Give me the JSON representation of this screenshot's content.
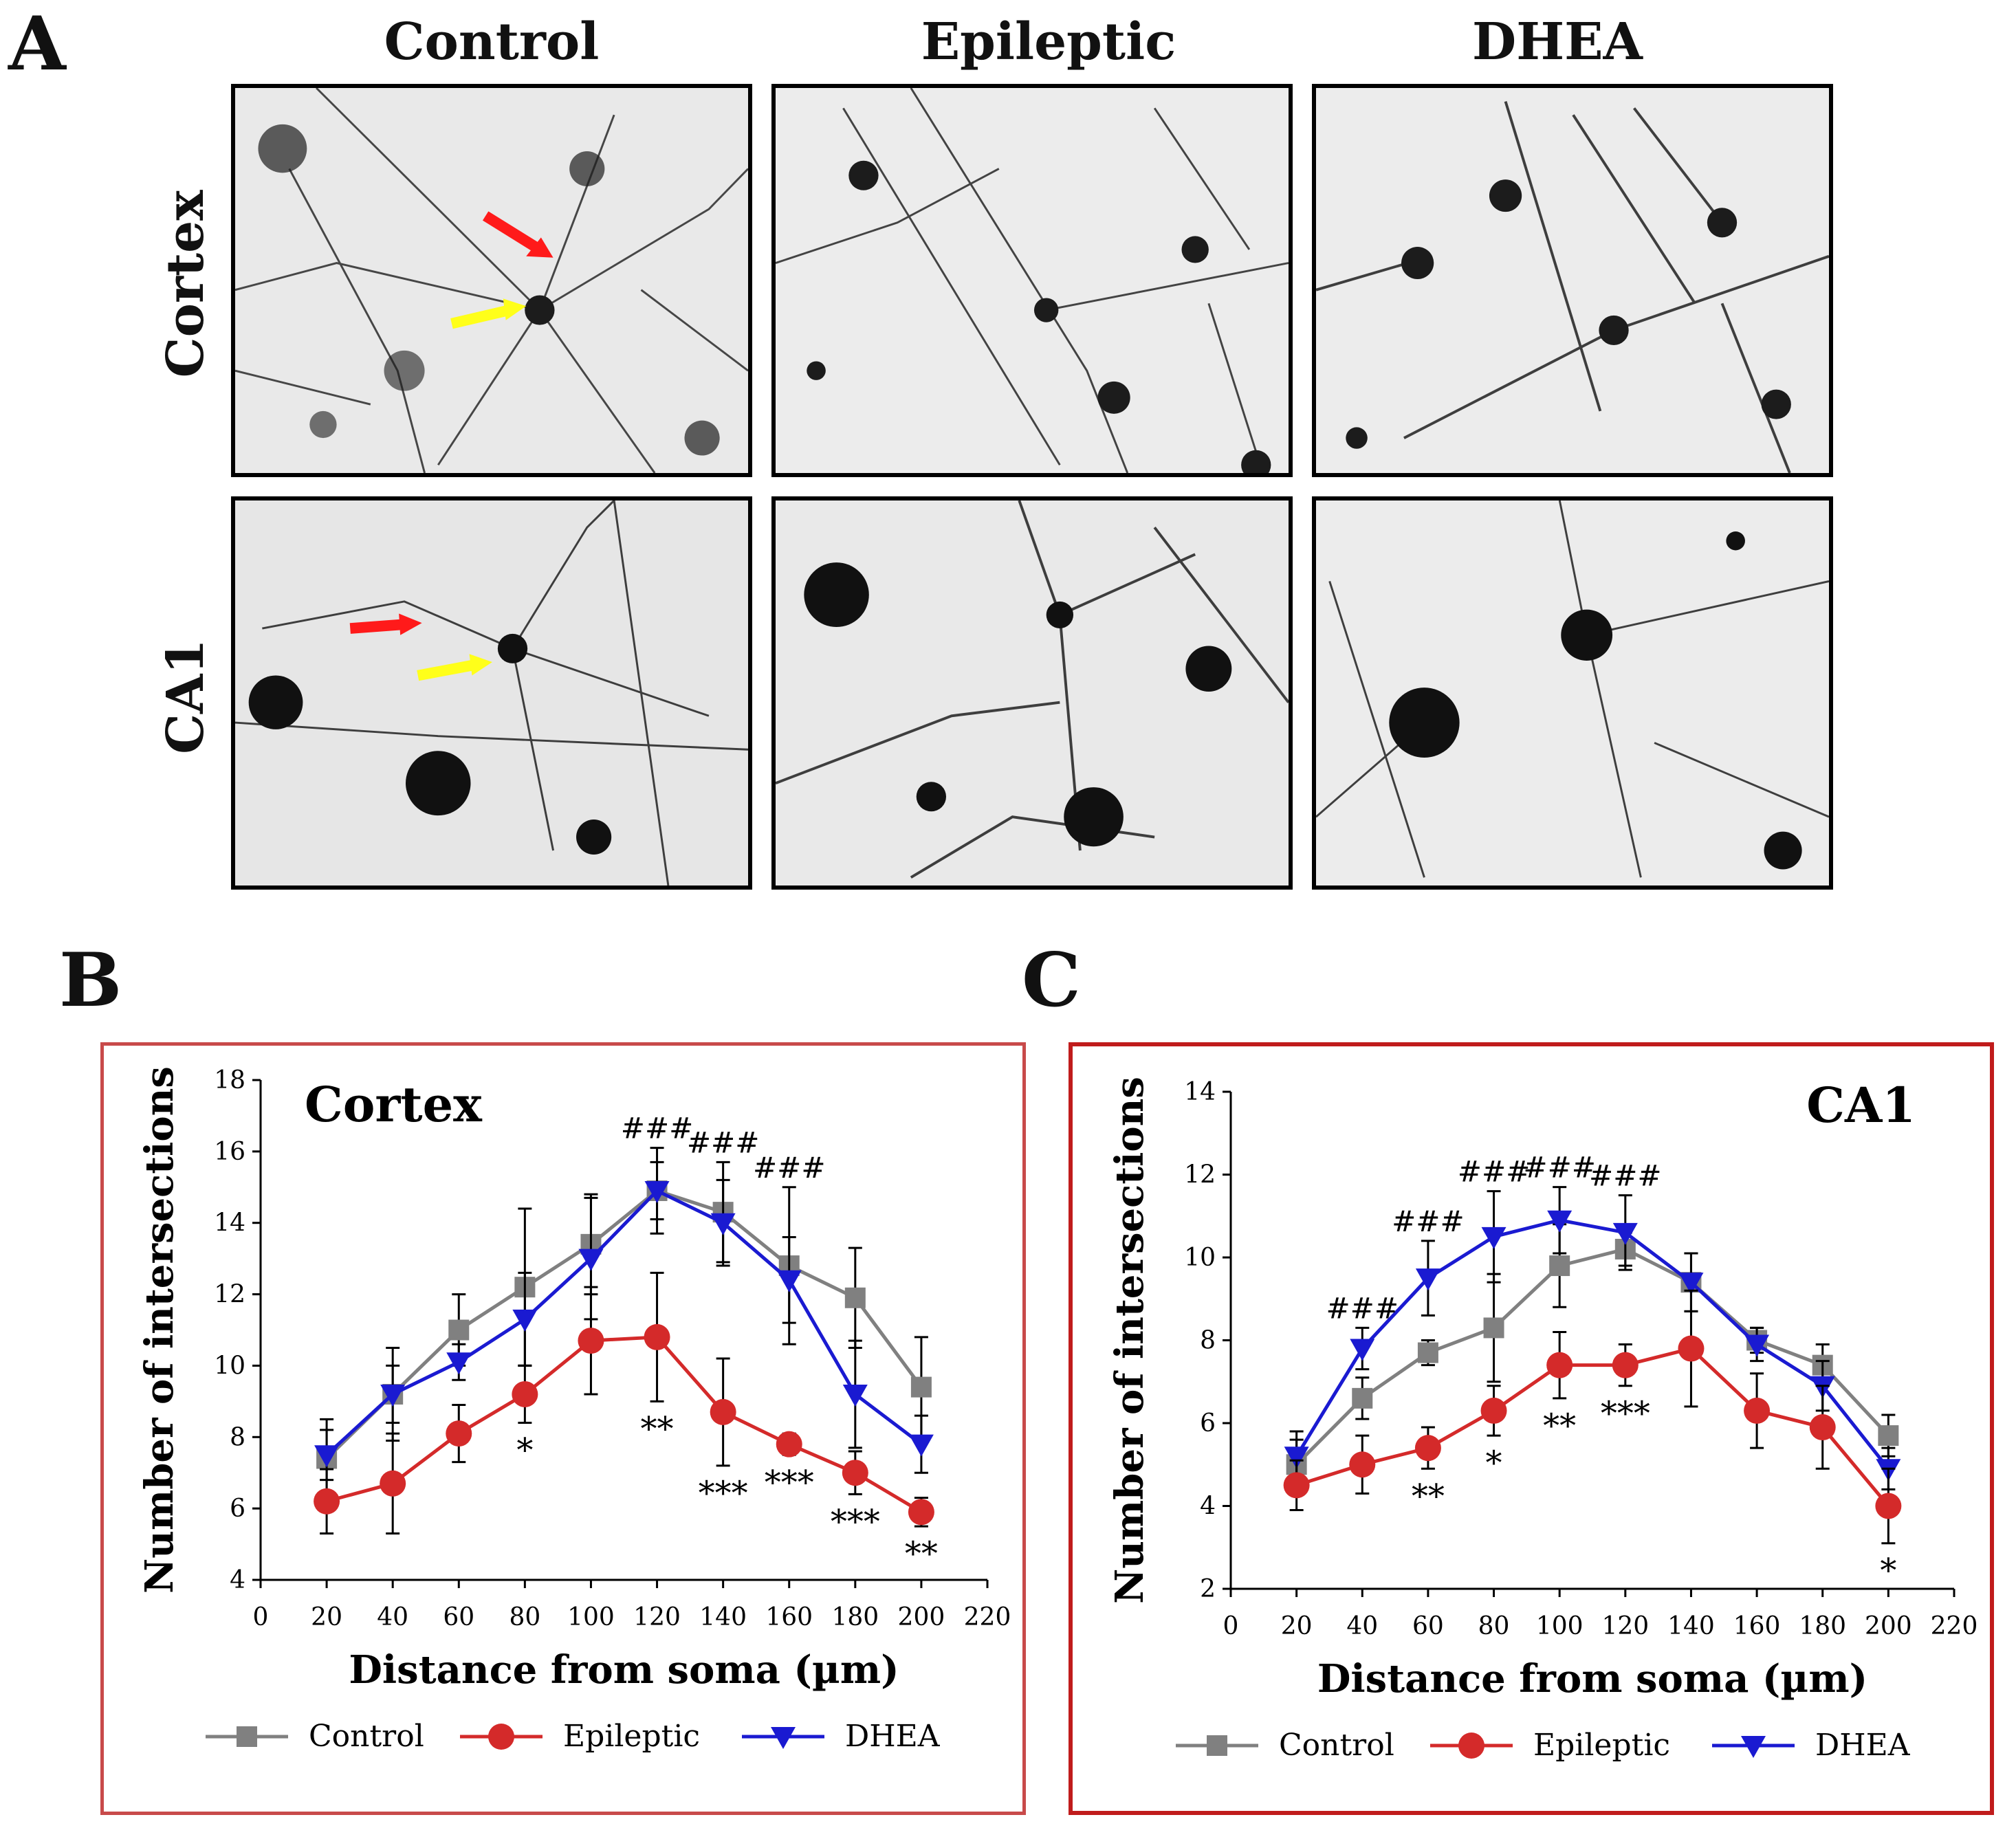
{
  "figure": {
    "panel_a_label": "A",
    "panel_b_label": "B",
    "panel_c_label": "C",
    "columns": [
      "Control",
      "Epileptic",
      "DHEA"
    ],
    "rows": [
      "Cortex",
      "CA1"
    ],
    "arrow_colors": {
      "dendrite": "#ff1a1a",
      "soma": "#ffff1a"
    }
  },
  "chart_data": [
    {
      "type": "line",
      "title": "Cortex",
      "xlabel": "Distance from soma (µm)",
      "ylabel": "Number of intersections",
      "xlim": [
        0,
        220
      ],
      "ylim": [
        4,
        18
      ],
      "x_ticks": [
        0,
        20,
        40,
        60,
        80,
        100,
        120,
        140,
        160,
        180,
        200,
        220
      ],
      "y_ticks": [
        4,
        6,
        8,
        10,
        12,
        14,
        16,
        18
      ],
      "x": [
        20,
        40,
        60,
        80,
        100,
        120,
        140,
        160,
        180,
        200
      ],
      "series": [
        {
          "name": "Control",
          "color": "#808080",
          "marker": "square",
          "values": [
            7.4,
            9.2,
            11.0,
            12.2,
            13.4,
            14.9,
            14.3,
            12.8,
            11.9,
            9.4
          ],
          "errors": [
            1.1,
            1.3,
            1.0,
            2.2,
            1.4,
            1.2,
            1.4,
            2.2,
            1.4,
            1.4
          ]
        },
        {
          "name": "Epileptic",
          "color": "#d42a2a",
          "marker": "circle",
          "values": [
            6.2,
            6.7,
            8.1,
            9.2,
            10.7,
            10.8,
            8.7,
            7.8,
            7.0,
            5.9
          ],
          "errors": [
            0.9,
            1.4,
            0.8,
            0.8,
            1.5,
            1.8,
            1.5,
            0.3,
            0.6,
            0.4
          ]
        },
        {
          "name": "DHEA",
          "color": "#1a1ad1",
          "marker": "triangle-down",
          "values": [
            7.5,
            9.2,
            10.1,
            11.3,
            13.0,
            14.9,
            14.0,
            12.4,
            9.2,
            7.8
          ],
          "errors": [
            0.7,
            0.8,
            0.5,
            1.3,
            1.7,
            0.8,
            1.2,
            1.2,
            1.5,
            0.8
          ]
        }
      ],
      "annotations": [
        {
          "x": 80,
          "text": "*",
          "series": "Epileptic"
        },
        {
          "x": 120,
          "text": "**",
          "series": "Epileptic"
        },
        {
          "x": 140,
          "text": "***",
          "series": "Epileptic"
        },
        {
          "x": 160,
          "text": "***",
          "series": "Epileptic"
        },
        {
          "x": 180,
          "text": "***",
          "series": "Epileptic"
        },
        {
          "x": 200,
          "text": "**",
          "series": "Epileptic"
        },
        {
          "x": 120,
          "text": "###",
          "series": "DHEA"
        },
        {
          "x": 140,
          "text": "###",
          "series": "DHEA"
        },
        {
          "x": 160,
          "text": "###",
          "series": "DHEA"
        }
      ],
      "legend": [
        "Control",
        "Epileptic",
        "DHEA"
      ],
      "legend_position": "bottom",
      "frame_color": "#c84a4a"
    },
    {
      "type": "line",
      "title": "CA1",
      "xlabel": "Distance from soma (µm)",
      "ylabel": "Number of intersections",
      "xlim": [
        0,
        220
      ],
      "ylim": [
        2,
        14
      ],
      "x_ticks": [
        0,
        20,
        40,
        60,
        80,
        100,
        120,
        140,
        160,
        180,
        200,
        220
      ],
      "y_ticks": [
        2,
        4,
        6,
        8,
        10,
        12,
        14
      ],
      "x": [
        20,
        40,
        60,
        80,
        100,
        120,
        140,
        160,
        180,
        200
      ],
      "series": [
        {
          "name": "Control",
          "color": "#808080",
          "marker": "square",
          "values": [
            5.0,
            6.6,
            7.7,
            8.3,
            9.8,
            10.2,
            9.4,
            8.0,
            7.4,
            5.7
          ],
          "errors": [
            0.6,
            0.5,
            0.3,
            1.3,
            1.0,
            0.4,
            0.7,
            0.3,
            0.5,
            0.5
          ]
        },
        {
          "name": "Epileptic",
          "color": "#d42a2a",
          "marker": "circle",
          "values": [
            4.5,
            5.0,
            5.4,
            6.3,
            7.4,
            7.4,
            7.8,
            6.3,
            5.9,
            4.0
          ],
          "errors": [
            0.6,
            0.7,
            0.5,
            0.6,
            0.8,
            0.5,
            1.4,
            0.9,
            1.0,
            0.9
          ]
        },
        {
          "name": "DHEA",
          "color": "#1a1ad1",
          "marker": "triangle-down",
          "values": [
            5.2,
            7.8,
            9.5,
            10.5,
            10.9,
            10.6,
            9.4,
            7.9,
            6.9,
            4.9
          ],
          "errors": [
            0.6,
            0.5,
            0.9,
            1.1,
            0.8,
            0.9,
            0.7,
            0.4,
            0.6,
            0.5
          ]
        }
      ],
      "annotations": [
        {
          "x": 60,
          "text": "**",
          "series": "Epileptic"
        },
        {
          "x": 80,
          "text": "*",
          "series": "Epileptic"
        },
        {
          "x": 100,
          "text": "**",
          "series": "Epileptic"
        },
        {
          "x": 120,
          "text": "***",
          "series": "Epileptic"
        },
        {
          "x": 200,
          "text": "*",
          "series": "Epileptic"
        },
        {
          "x": 40,
          "text": "###",
          "series": "DHEA"
        },
        {
          "x": 60,
          "text": "###",
          "series": "DHEA"
        },
        {
          "x": 80,
          "text": "###",
          "series": "DHEA"
        },
        {
          "x": 100,
          "text": "###",
          "series": "DHEA"
        },
        {
          "x": 120,
          "text": "###",
          "series": "DHEA"
        }
      ],
      "legend": [
        "Control",
        "Epileptic",
        "DHEA"
      ],
      "legend_position": "bottom",
      "frame_color": "#c01c1c"
    }
  ]
}
